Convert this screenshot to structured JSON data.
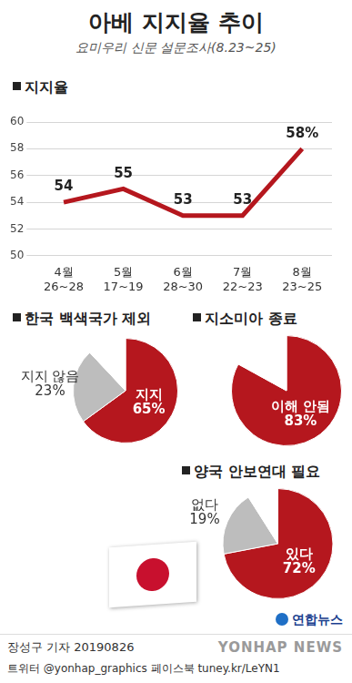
{
  "header": {
    "title": "아베 지지율 추이",
    "subtitle": "요미우리 신문 설문조사(8.23~25)"
  },
  "chart_data": [
    {
      "type": "line",
      "title": "지지율",
      "categories": [
        "4월 26~28",
        "5월 17~19",
        "6월 28~30",
        "7월 22~23",
        "8월 23~25"
      ],
      "values": [
        54,
        55,
        53,
        53,
        58
      ],
      "value_labels": [
        "54",
        "55",
        "53",
        "53",
        "58%"
      ],
      "color": "#b5171e",
      "ylim": [
        50,
        60
      ],
      "yticks": [
        50,
        52,
        54,
        56,
        58,
        60
      ],
      "grid": true,
      "data_labels": true
    },
    {
      "type": "pie",
      "title": "한국 백색국가 제외",
      "categories": [
        "지지",
        "지지 않음",
        null
      ],
      "values": [
        65,
        23,
        12
      ],
      "value_labels": [
        "65%",
        "23%",
        null
      ],
      "colors": [
        "#b5171e",
        "#bdbdbd",
        "#ffffff"
      ],
      "data_labels": true
    },
    {
      "type": "pie",
      "title": "지소미아 종료",
      "categories": [
        "이해 안됨",
        null
      ],
      "values": [
        83,
        17
      ],
      "value_labels": [
        "83%",
        null
      ],
      "colors": [
        "#b5171e",
        "#ffffff"
      ],
      "data_labels": true
    },
    {
      "type": "pie",
      "title": "양국 안보연대 필요",
      "categories": [
        "있다",
        "없다",
        null
      ],
      "values": [
        72,
        19,
        9
      ],
      "value_labels": [
        "72%",
        "19%",
        null
      ],
      "colors": [
        "#b5171e",
        "#bdbdbd",
        "#ffffff"
      ],
      "data_labels": true
    }
  ],
  "footer": {
    "logo": "연합뉴스",
    "byline": "장성구 기자 20190826",
    "social": "트위터 @yonhap_graphics 페이스북 tuney.kr/LeYN1",
    "watermark": "YONHAP NEWS"
  }
}
